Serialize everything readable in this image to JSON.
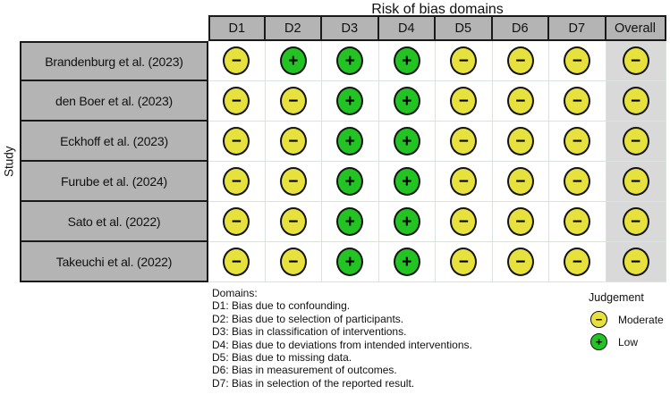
{
  "judgements": {
    "moderate": {
      "label": "Moderate",
      "symbol": "−",
      "color": "#e7e13d"
    },
    "low": {
      "label": "Low",
      "symbol": "+",
      "color": "#22c322"
    }
  },
  "legend": {
    "title": "Judgement",
    "order": [
      "moderate",
      "low"
    ]
  },
  "notes": {
    "heading": "Domains:",
    "lines": [
      "D1: Bias due to confounding.",
      "D2: Bias due to selection of participants.",
      "D3: Bias in classification of interventions.",
      "D4: Bias due to deviations from intended interventions.",
      "D5: Bias due to missing data.",
      "D6: Bias in measurement of outcomes.",
      "D7: Bias in selection of the reported result."
    ]
  },
  "colors": {
    "header_bg": "#b4b4b4",
    "label_bg": "#b4b4b4",
    "overall_column_bg": "#d9d9d9",
    "grid_line": "#dce3dc",
    "cell_border": "#1a1a1a",
    "moderate": "#e7e13d",
    "low": "#22c322",
    "background": "#ffffff"
  },
  "chart_data": {
    "type": "table",
    "title": "Risk of bias domains",
    "ylabel": "Study",
    "columns": [
      "D1",
      "D2",
      "D3",
      "D4",
      "D5",
      "D6",
      "D7",
      "Overall"
    ],
    "rows": [
      {
        "study": "Brandenburg et al. (2023)",
        "values": [
          "moderate",
          "low",
          "low",
          "low",
          "moderate",
          "moderate",
          "moderate",
          "moderate"
        ]
      },
      {
        "study": "den Boer et al. (2023)",
        "values": [
          "moderate",
          "moderate",
          "low",
          "low",
          "moderate",
          "moderate",
          "moderate",
          "moderate"
        ]
      },
      {
        "study": "Eckhoff et al. (2023)",
        "values": [
          "moderate",
          "moderate",
          "low",
          "low",
          "moderate",
          "moderate",
          "moderate",
          "moderate"
        ]
      },
      {
        "study": "Furube et al. (2024)",
        "values": [
          "moderate",
          "moderate",
          "low",
          "low",
          "moderate",
          "moderate",
          "moderate",
          "moderate"
        ]
      },
      {
        "study": "Sato et al. (2022)",
        "values": [
          "moderate",
          "moderate",
          "low",
          "low",
          "moderate",
          "moderate",
          "moderate",
          "moderate"
        ]
      },
      {
        "study": "Takeuchi et al. (2022)",
        "values": [
          "moderate",
          "moderate",
          "low",
          "low",
          "moderate",
          "moderate",
          "moderate",
          "moderate"
        ]
      }
    ],
    "legend": {
      "title": "Judgement",
      "items": [
        {
          "symbol": "−",
          "label": "Moderate"
        },
        {
          "symbol": "+",
          "label": "Low"
        }
      ]
    },
    "footnotes": [
      "Domains:",
      "D1: Bias due to confounding.",
      "D2: Bias due to selection of participants.",
      "D3: Bias in classification of interventions.",
      "D4: Bias due to deviations from intended interventions.",
      "D5: Bias due to missing data.",
      "D6: Bias in measurement of outcomes.",
      "D7: Bias in selection of the reported result."
    ]
  }
}
